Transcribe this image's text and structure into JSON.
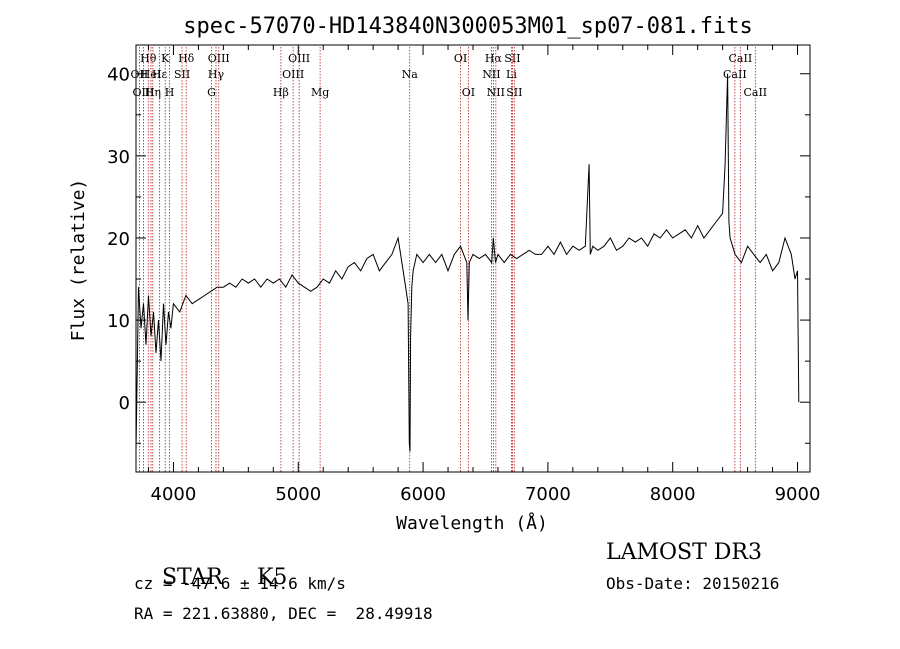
{
  "chart_data": {
    "type": "line",
    "title": "spec-57070-HD143840N300053M01_sp07-081.fits",
    "xlabel": "Wavelength (Å)",
    "ylabel": "Flux (relative)",
    "xlim": [
      3700,
      9100
    ],
    "ylim": [
      -8.5,
      43.5
    ],
    "xticks": [
      4000,
      5000,
      6000,
      7000,
      8000,
      9000
    ],
    "yticks": [
      0,
      10,
      20,
      30,
      40
    ],
    "grid": false,
    "line_color": "#000000",
    "marker_color": "#b22222",
    "series": [
      {
        "x": [
          3700,
          3720,
          3740,
          3760,
          3780,
          3800,
          3820,
          3840,
          3860,
          3880,
          3900,
          3920,
          3940,
          3960,
          3980,
          4000,
          4050,
          4100,
          4150,
          4200,
          4250,
          4300,
          4350,
          4400,
          4450,
          4500,
          4550,
          4600,
          4650,
          4700,
          4750,
          4800,
          4850,
          4900,
          4950,
          5000,
          5050,
          5100,
          5150,
          5200,
          5250,
          5300,
          5350,
          5400,
          5450,
          5500,
          5550,
          5600,
          5650,
          5700,
          5750,
          5800,
          5850,
          5880,
          5890,
          5895,
          5900,
          5910,
          5920,
          5950,
          6000,
          6050,
          6100,
          6150,
          6200,
          6250,
          6300,
          6350,
          6360,
          6370,
          6400,
          6450,
          6500,
          6550,
          6563,
          6580,
          6600,
          6650,
          6700,
          6750,
          6800,
          6850,
          6900,
          6950,
          7000,
          7050,
          7100,
          7150,
          7200,
          7250,
          7300,
          7330,
          7340,
          7360,
          7400,
          7450,
          7500,
          7550,
          7600,
          7650,
          7700,
          7750,
          7800,
          7850,
          7900,
          7950,
          8000,
          8050,
          8100,
          8150,
          8200,
          8250,
          8300,
          8350,
          8400,
          8420,
          8440,
          8450,
          8460,
          8480,
          8500,
          8550,
          8600,
          8650,
          8700,
          8750,
          8800,
          8850,
          8900,
          8950,
          8980,
          9000,
          9010
        ],
        "y": [
          -6,
          14,
          9,
          12,
          7,
          13,
          8,
          11,
          6,
          10,
          5,
          12,
          7,
          11,
          9,
          12,
          11,
          13,
          12,
          12.5,
          13,
          13.5,
          14,
          14,
          14.5,
          14,
          15,
          14.5,
          15,
          14,
          15,
          14.5,
          15,
          14,
          15.5,
          14.5,
          14,
          13.5,
          14,
          15,
          14.5,
          16,
          15,
          16.5,
          17,
          16,
          17.5,
          18,
          16,
          17,
          18,
          20,
          15,
          12,
          -5,
          -6,
          8,
          14,
          16,
          18,
          17,
          18,
          17,
          18,
          16,
          18,
          19,
          17,
          10,
          17,
          18,
          17.5,
          18,
          17,
          20,
          17,
          18,
          17,
          18,
          17.5,
          18,
          18.5,
          18,
          18,
          19,
          18,
          19.5,
          18,
          19,
          18.5,
          19,
          29,
          18,
          19,
          18.5,
          19,
          20,
          18.5,
          19,
          20,
          19.5,
          20,
          19,
          20.5,
          20,
          21,
          20,
          20.5,
          21,
          20,
          21.5,
          20,
          21,
          22,
          23,
          29,
          40,
          22,
          20,
          19,
          18,
          17,
          19,
          18,
          17,
          18,
          16,
          17,
          20,
          18,
          15,
          16,
          0
        ]
      }
    ],
    "line_markers": [
      {
        "label": "Hθ",
        "wavelength": 3798,
        "row": 1
      },
      {
        "label": "OII",
        "wavelength": 3727,
        "row": 2
      },
      {
        "label": "Hε",
        "wavelength": 3889,
        "row": 2
      },
      {
        "label": "HeI",
        "wavelength": 3820,
        "row": 2
      },
      {
        "label": "OIII",
        "wavelength": 3760,
        "row": 3
      },
      {
        "label": "Hη",
        "wavelength": 3835,
        "row": 3
      },
      {
        "label": "K",
        "wavelength": 3934,
        "row": 1
      },
      {
        "label": "H",
        "wavelength": 3969,
        "row": 3
      },
      {
        "label": "SII",
        "wavelength": 4069,
        "row": 2
      },
      {
        "label": "Hδ",
        "wavelength": 4102,
        "row": 1
      },
      {
        "label": "OIII",
        "wavelength": 4363,
        "row": 1
      },
      {
        "label": "Hγ",
        "wavelength": 4341,
        "row": 2
      },
      {
        "label": "G",
        "wavelength": 4305,
        "row": 3
      },
      {
        "label": "Hβ",
        "wavelength": 4861,
        "row": 3
      },
      {
        "label": "OIII",
        "wavelength": 5007,
        "row": 1
      },
      {
        "label": "OIII",
        "wavelength": 4959,
        "row": 2
      },
      {
        "label": "Mg",
        "wavelength": 5175,
        "row": 3
      },
      {
        "label": "Na",
        "wavelength": 5893,
        "row": 2
      },
      {
        "label": "OI",
        "wavelength": 6300,
        "row": 1
      },
      {
        "label": "OI",
        "wavelength": 6363,
        "row": 3
      },
      {
        "label": "Hα",
        "wavelength": 6563,
        "row": 1
      },
      {
        "label": "NII",
        "wavelength": 6548,
        "row": 2
      },
      {
        "label": "NII",
        "wavelength": 6583,
        "row": 3
      },
      {
        "label": "SII",
        "wavelength": 6716,
        "row": 1
      },
      {
        "label": "Li",
        "wavelength": 6708,
        "row": 2
      },
      {
        "label": "SII",
        "wavelength": 6731,
        "row": 3
      },
      {
        "label": "CaII",
        "wavelength": 8542,
        "row": 1
      },
      {
        "label": "CaII",
        "wavelength": 8498,
        "row": 2
      },
      {
        "label": "CaII",
        "wavelength": 8662,
        "row": 3
      }
    ]
  },
  "info": {
    "object_class": "STAR",
    "subclass": "K5",
    "survey": "LAMOST DR3",
    "redshift_line": "cz = -47.6 ± 14.6 km/s",
    "obs_date_line": "Obs-Date: 20150216",
    "coords_line": "RA = 221.63880, DEC =  28.49918"
  }
}
